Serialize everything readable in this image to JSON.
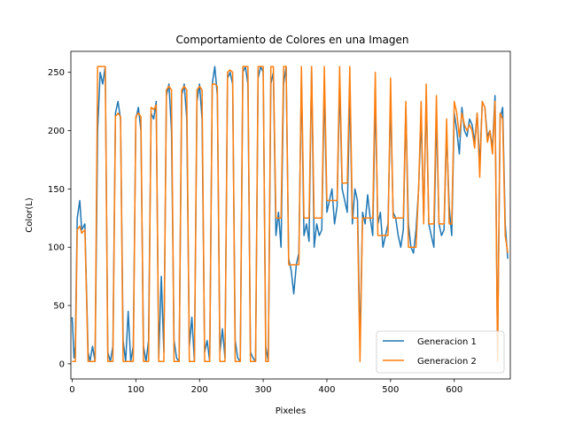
{
  "chart_data": {
    "type": "line",
    "title": "Comportamiento de Colores en una Imagen",
    "xlabel": "Pixeles",
    "ylabel": "Color(L)",
    "xlim": [
      -2,
      688
    ],
    "ylim": [
      -13,
      268
    ],
    "xticks": [
      0,
      100,
      200,
      300,
      400,
      500,
      600
    ],
    "yticks": [
      0,
      50,
      100,
      150,
      200,
      250
    ],
    "grid": false,
    "legend_position": "lower right",
    "series": [
      {
        "name": "Generacion 1",
        "color": "#1f77b4",
        "x": [
          0,
          3,
          5,
          8,
          12,
          15,
          20,
          25,
          28,
          32,
          36,
          40,
          44,
          48,
          52,
          56,
          60,
          64,
          68,
          72,
          76,
          80,
          84,
          88,
          92,
          96,
          100,
          104,
          108,
          112,
          116,
          120,
          124,
          128,
          132,
          136,
          140,
          144,
          148,
          152,
          156,
          160,
          164,
          168,
          172,
          176,
          180,
          184,
          188,
          192,
          196,
          200,
          204,
          208,
          212,
          216,
          220,
          224,
          228,
          232,
          236,
          240,
          244,
          248,
          252,
          256,
          260,
          264,
          268,
          272,
          276,
          280,
          284,
          288,
          292,
          296,
          300,
          304,
          308,
          312,
          316,
          320,
          324,
          328,
          332,
          336,
          340,
          344,
          348,
          352,
          356,
          360,
          364,
          368,
          372,
          376,
          380,
          384,
          388,
          392,
          396,
          400,
          404,
          408,
          412,
          416,
          420,
          424,
          428,
          432,
          436,
          440,
          444,
          448,
          452,
          456,
          460,
          464,
          468,
          472,
          476,
          480,
          484,
          488,
          492,
          496,
          500,
          504,
          508,
          512,
          516,
          520,
          524,
          528,
          532,
          536,
          540,
          544,
          548,
          552,
          556,
          560,
          564,
          568,
          572,
          576,
          580,
          584,
          588,
          592,
          596,
          600,
          604,
          608,
          612,
          616,
          620,
          624,
          628,
          632,
          636,
          640,
          644,
          648,
          652,
          656,
          660,
          664,
          668,
          672,
          676,
          680,
          684
        ],
        "values": [
          40,
          5,
          15,
          125,
          140,
          115,
          120,
          10,
          2,
          15,
          2,
          200,
          250,
          240,
          255,
          10,
          2,
          15,
          215,
          225,
          210,
          20,
          2,
          45,
          2,
          15,
          210,
          220,
          200,
          15,
          2,
          20,
          215,
          210,
          225,
          5,
          75,
          10,
          230,
          240,
          200,
          20,
          5,
          2,
          230,
          240,
          210,
          15,
          40,
          2,
          225,
          240,
          210,
          10,
          20,
          2,
          240,
          255,
          230,
          10,
          30,
          5,
          245,
          250,
          240,
          20,
          5,
          2,
          250,
          255,
          240,
          10,
          5,
          2,
          245,
          255,
          250,
          15,
          2,
          240,
          250,
          110,
          130,
          100,
          240,
          255,
          90,
          80,
          60,
          85,
          95,
          245,
          110,
          120,
          105,
          255,
          100,
          120,
          110,
          115,
          240,
          130,
          140,
          150,
          120,
          135,
          240,
          150,
          140,
          130,
          235,
          120,
          150,
          140,
          15,
          130,
          120,
          145,
          125,
          110,
          230,
          120,
          130,
          100,
          110,
          120,
          225,
          130,
          125,
          110,
          100,
          115,
          220,
          120,
          100,
          95,
          115,
          150,
          210,
          125,
          230,
          120,
          110,
          100,
          215,
          120,
          110,
          115,
          200,
          135,
          110,
          215,
          200,
          180,
          220,
          200,
          195,
          210,
          205,
          190,
          215,
          170,
          225,
          220,
          195,
          200,
          185,
          230,
          10,
          210,
          220,
          120,
          90
        ]
      },
      {
        "name": "Generacion 2",
        "color": "#ff7f0e",
        "x": [
          0,
          3,
          5,
          8,
          12,
          15,
          20,
          25,
          28,
          32,
          36,
          40,
          44,
          48,
          52,
          56,
          60,
          64,
          68,
          72,
          76,
          80,
          84,
          88,
          92,
          96,
          100,
          104,
          108,
          112,
          116,
          120,
          124,
          128,
          132,
          136,
          140,
          144,
          148,
          152,
          156,
          160,
          164,
          168,
          172,
          176,
          180,
          184,
          188,
          192,
          196,
          200,
          204,
          208,
          212,
          216,
          220,
          224,
          228,
          232,
          236,
          240,
          244,
          248,
          252,
          256,
          260,
          264,
          268,
          272,
          276,
          280,
          284,
          288,
          292,
          296,
          300,
          304,
          308,
          312,
          316,
          320,
          324,
          328,
          332,
          336,
          340,
          344,
          348,
          352,
          356,
          360,
          364,
          368,
          372,
          376,
          380,
          384,
          388,
          392,
          396,
          400,
          404,
          408,
          412,
          416,
          420,
          424,
          428,
          432,
          436,
          440,
          444,
          448,
          452,
          456,
          460,
          464,
          468,
          472,
          476,
          480,
          484,
          488,
          492,
          496,
          500,
          504,
          508,
          512,
          516,
          520,
          524,
          528,
          532,
          536,
          540,
          544,
          548,
          552,
          556,
          560,
          564,
          568,
          572,
          576,
          580,
          584,
          588,
          592,
          596,
          600,
          604,
          608,
          612,
          616,
          620,
          624,
          628,
          632,
          636,
          640,
          644,
          648,
          652,
          656,
          660,
          664,
          668,
          672,
          676,
          680,
          684
        ],
        "values": [
          2,
          2,
          2,
          115,
          118,
          112,
          115,
          2,
          2,
          2,
          2,
          255,
          255,
          255,
          255,
          2,
          2,
          2,
          212,
          215,
          212,
          2,
          2,
          2,
          2,
          2,
          212,
          215,
          212,
          2,
          2,
          2,
          220,
          218,
          222,
          2,
          2,
          2,
          235,
          238,
          235,
          2,
          2,
          2,
          235,
          238,
          235,
          2,
          2,
          2,
          235,
          238,
          235,
          2,
          2,
          2,
          240,
          240,
          238,
          2,
          2,
          2,
          250,
          252,
          250,
          2,
          2,
          2,
          255,
          255,
          255,
          2,
          2,
          2,
          255,
          255,
          255,
          2,
          2,
          255,
          255,
          125,
          125,
          125,
          255,
          255,
          85,
          85,
          85,
          85,
          85,
          255,
          125,
          125,
          125,
          255,
          125,
          125,
          125,
          125,
          255,
          140,
          140,
          140,
          140,
          140,
          255,
          155,
          155,
          155,
          255,
          125,
          125,
          125,
          2,
          125,
          125,
          125,
          125,
          125,
          250,
          110,
          110,
          110,
          110,
          110,
          245,
          125,
          125,
          125,
          125,
          125,
          225,
          100,
          100,
          100,
          100,
          150,
          225,
          120,
          240,
          120,
          120,
          120,
          230,
          120,
          120,
          120,
          210,
          120,
          120,
          225,
          215,
          195,
          215,
          205,
          200,
          205,
          200,
          185,
          215,
          160,
          225,
          220,
          190,
          200,
          180,
          225,
          2,
          215,
          210,
          110,
          95
        ]
      }
    ]
  }
}
